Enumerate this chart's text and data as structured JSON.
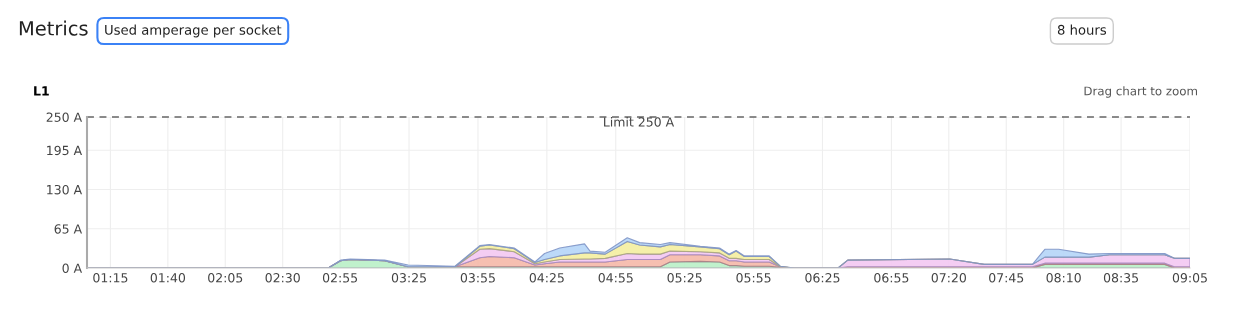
{
  "chart_data": {
    "type": "area",
    "stacked": true,
    "title": "Metrics",
    "subtitle": "L1",
    "annotations": [
      "Used amperage per socket",
      "8 hours",
      "Drag chart to zoom"
    ],
    "x": [
      1.08,
      2.83,
      2.92,
      2.99,
      3.24,
      3.41,
      3.75,
      3.93,
      4.0,
      4.18,
      4.33,
      4.4,
      4.51,
      4.69,
      4.73,
      4.84,
      5.0,
      5.09,
      5.24,
      5.31,
      5.53,
      5.67,
      5.74,
      5.79,
      5.85,
      6.03,
      6.11,
      6.21,
      6.53,
      6.6,
      7.34,
      7.59,
      7.94,
      8.03,
      8.13,
      8.35,
      8.5,
      8.9,
      8.97,
      9.0833
    ],
    "series": [
      {
        "color": "#b9f0c6",
        "values": [
          0,
          0,
          12,
          14,
          12,
          2,
          2,
          2,
          2,
          2,
          2,
          2,
          2,
          2,
          2,
          2,
          2,
          2,
          2,
          10,
          11,
          10,
          4,
          4,
          3,
          3,
          1,
          0,
          0,
          0,
          0,
          0,
          0,
          6,
          6,
          6,
          6,
          6,
          0,
          0
        ]
      },
      {
        "color": "#f5b8a8",
        "values": [
          0,
          0,
          0,
          0,
          0,
          0,
          0,
          15,
          17,
          15,
          3,
          5,
          8,
          8,
          8,
          8,
          12,
          12,
          12,
          12,
          11,
          10,
          8,
          8,
          7,
          7,
          1,
          0,
          0,
          2,
          2,
          2,
          2,
          2,
          2,
          2,
          2,
          2,
          2,
          2
        ]
      },
      {
        "color": "#f3c8f2",
        "values": [
          0,
          0,
          0,
          0,
          0,
          0,
          0,
          14,
          13,
          10,
          2,
          3,
          4,
          5,
          5,
          6,
          10,
          9,
          9,
          6,
          5,
          5,
          4,
          4,
          4,
          4,
          0,
          0,
          0,
          11,
          13,
          4,
          4,
          10,
          10,
          10,
          14,
          14,
          14,
          14
        ]
      },
      {
        "color": "#f4eea0",
        "values": [
          0,
          0,
          0,
          0,
          0,
          0,
          0,
          5,
          6,
          5,
          2,
          4,
          6,
          10,
          10,
          7,
          20,
          15,
          12,
          11,
          8,
          7,
          6,
          12,
          5,
          5,
          1,
          0,
          0,
          0,
          0,
          0,
          0,
          0,
          0,
          0,
          0,
          0,
          0,
          0
        ]
      },
      {
        "color": "#b5d5f7",
        "values": [
          0,
          0,
          1,
          1,
          1,
          3,
          1,
          1,
          1,
          1,
          1,
          10,
          13,
          15,
          3,
          3,
          6,
          4,
          4,
          3,
          1,
          1,
          1,
          1,
          1,
          1,
          0,
          0,
          0,
          0,
          0,
          0,
          0,
          13,
          13,
          5,
          2,
          2,
          0,
          0
        ]
      }
    ],
    "ylim": [
      0,
      250
    ],
    "yticks": [
      {
        "value": 0,
        "label": "0 A"
      },
      {
        "value": 65,
        "label": "65 A"
      },
      {
        "value": 130,
        "label": "130 A"
      },
      {
        "value": 195,
        "label": "195 A"
      },
      {
        "value": 250,
        "label": "250 A"
      }
    ],
    "xlim": [
      1.08,
      9.0833
    ],
    "xticks": [
      {
        "value": 1.25,
        "label": "01:15"
      },
      {
        "value": 1.6667,
        "label": "01:40"
      },
      {
        "value": 2.0833,
        "label": "02:05"
      },
      {
        "value": 2.5,
        "label": "02:30"
      },
      {
        "value": 2.9167,
        "label": "02:55"
      },
      {
        "value": 3.4167,
        "label": "03:25"
      },
      {
        "value": 3.9167,
        "label": "03:55"
      },
      {
        "value": 4.4167,
        "label": "04:25"
      },
      {
        "value": 4.9167,
        "label": "04:55"
      },
      {
        "value": 5.4167,
        "label": "05:25"
      },
      {
        "value": 5.9167,
        "label": "05:55"
      },
      {
        "value": 6.4167,
        "label": "06:25"
      },
      {
        "value": 6.9167,
        "label": "06:55"
      },
      {
        "value": 7.3333,
        "label": "07:20"
      },
      {
        "value": 7.75,
        "label": "07:45"
      },
      {
        "value": 8.1667,
        "label": "08:10"
      },
      {
        "value": 8.5833,
        "label": "08:35"
      },
      {
        "value": 9.0833,
        "label": "09:05"
      }
    ],
    "ref_lines": [
      {
        "axis": "y",
        "value": 250,
        "label": "Limit 250 A",
        "color": "#666666",
        "line_style": "dashed"
      }
    ],
    "grid": true
  }
}
